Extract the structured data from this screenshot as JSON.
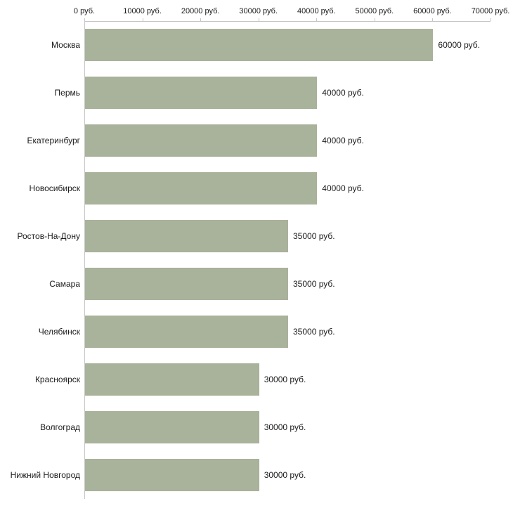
{
  "chart_data": {
    "type": "bar",
    "orientation": "horizontal",
    "title": "",
    "xlabel": "",
    "ylabel": "",
    "categories": [
      "Москва",
      "Пермь",
      "Екатеринбург",
      "Новосибирск",
      "Ростов-На-Дону",
      "Самара",
      "Челябинск",
      "Красноярск",
      "Волгоград",
      "Нижний Новгород"
    ],
    "values": [
      60000,
      40000,
      40000,
      40000,
      35000,
      35000,
      35000,
      30000,
      30000,
      30000
    ],
    "value_labels": [
      "60000 руб.",
      "40000 руб.",
      "40000 руб.",
      "40000 руб.",
      "35000 руб.",
      "35000 руб.",
      "35000 руб.",
      "30000 руб.",
      "30000 руб.",
      "30000 руб."
    ],
    "xlim": [
      0,
      70000
    ],
    "x_ticks": [
      0,
      10000,
      20000,
      30000,
      40000,
      50000,
      60000,
      70000
    ],
    "x_tick_labels": [
      "0 руб.",
      "10000 руб.",
      "20000 руб.",
      "30000 руб.",
      "40000 руб.",
      "50000 руб.",
      "60000 руб.",
      "70000 руб."
    ],
    "bar_color": "#a9b29a",
    "axis_color": "#c6c6c6",
    "text_color": "#1a1a1a",
    "grid": "off",
    "legend_position": "none"
  }
}
